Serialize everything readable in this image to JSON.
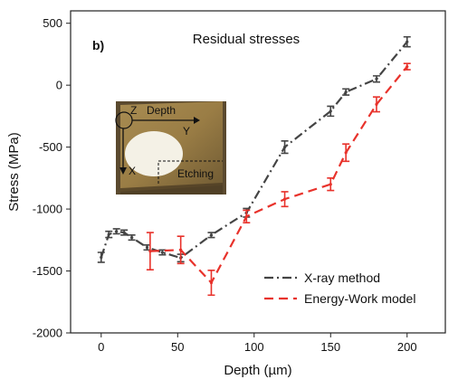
{
  "chart_data": {
    "type": "line",
    "panel_label": "b)",
    "title": "Residual stresses",
    "xlabel": "Depth (µm)",
    "ylabel": "Stress (MPa)",
    "xlim": [
      -20,
      225
    ],
    "ylim": [
      -2000,
      600
    ],
    "xticks": [
      0,
      50,
      100,
      150,
      200
    ],
    "yticks": [
      -2000,
      -1500,
      -1000,
      -500,
      0,
      500
    ],
    "grid": false,
    "legend_position": "bottom-right",
    "series": [
      {
        "name": "X-ray method",
        "color": "#444444",
        "dash": "dash-dot",
        "points": [
          {
            "x": 0,
            "y": -1390,
            "err": 40
          },
          {
            "x": 5,
            "y": -1205,
            "err": 25
          },
          {
            "x": 10,
            "y": -1180,
            "err": 20
          },
          {
            "x": 15,
            "y": -1190,
            "err": 20
          },
          {
            "x": 20,
            "y": -1230,
            "err": 20
          },
          {
            "x": 30,
            "y": -1310,
            "err": 20
          },
          {
            "x": 40,
            "y": -1350,
            "err": 20
          },
          {
            "x": 52,
            "y": -1395,
            "err": 30
          },
          {
            "x": 72,
            "y": -1210,
            "err": 20
          },
          {
            "x": 95,
            "y": -1030,
            "err": 35
          },
          {
            "x": 120,
            "y": -500,
            "err": 50
          },
          {
            "x": 150,
            "y": -210,
            "err": 40
          },
          {
            "x": 160,
            "y": -55,
            "err": 25
          },
          {
            "x": 180,
            "y": 50,
            "err": 25
          },
          {
            "x": 200,
            "y": 350,
            "err": 40
          }
        ]
      },
      {
        "name": "Energy-Work model",
        "color": "#e8322b",
        "dash": "dash",
        "points": [
          {
            "x": 32,
            "y": -1340,
            "err": 150
          },
          {
            "x": 52,
            "y": -1330,
            "err": 110
          },
          {
            "x": 72,
            "y": -1595,
            "err": 100
          },
          {
            "x": 95,
            "y": -1060,
            "err": 50
          },
          {
            "x": 120,
            "y": -920,
            "err": 60
          },
          {
            "x": 150,
            "y": -800,
            "err": 50
          },
          {
            "x": 160,
            "y": -545,
            "err": 70
          },
          {
            "x": 180,
            "y": -155,
            "err": 60
          },
          {
            "x": 200,
            "y": 150,
            "err": 25
          }
        ]
      }
    ]
  },
  "inset": {
    "z_label": "Z",
    "depth_label": "Depth",
    "y_label": "Y",
    "x_label": "X",
    "etching_label": "Etching"
  }
}
